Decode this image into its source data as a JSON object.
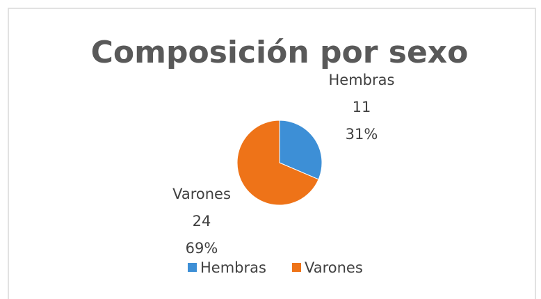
{
  "chart_data": {
    "type": "pie",
    "title": "Composición por sexo",
    "categories": [
      "Hembras",
      "Varones"
    ],
    "values": [
      11,
      24
    ],
    "percent_labels": [
      "31%",
      "69%"
    ],
    "colors": [
      "#3d8fd6",
      "#ee7318"
    ],
    "legend": "bottom"
  }
}
